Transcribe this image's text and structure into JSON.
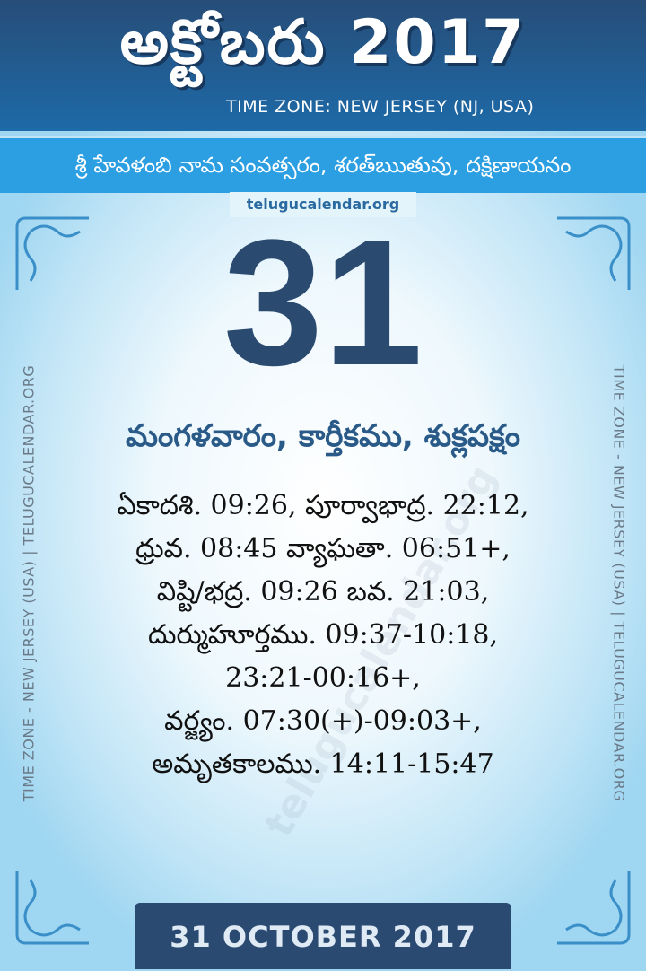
{
  "header": {
    "title": "అక్టోబరు 2017",
    "timezone": "TIME ZONE: NEW JERSEY (NJ, USA)"
  },
  "year_info": "శ్రీ హేవళంబి నామ సంవత్సరం, శరత్‌ఋతువు, దక్షిణాయనం",
  "site_label": "telugucalendar.org",
  "day_number": "31",
  "weekday_line": "మంగళవారం, కార్తీకము, శుక్లపక్షం",
  "details": [
    "ఏకాదశి. 09:26,  పూర్వాభాద్ర. 22:12,",
    "ధ్రువ. 08:45  వ్యాఘతా. 06:51+,",
    "విష్టి/భద్ర. 09:26  బవ. 21:03,",
    "దుర్ముహూర్తము. 09:37-10:18,",
    "23:21-00:16+,",
    "వర్జ్యం. 07:30(+)-09:03+,",
    "అమృతకాలము. 14:11-15:47"
  ],
  "side_text": "TIME ZONE - NEW JERSEY (USA) | TELUGUCALENDAR.ORG",
  "watermark": "telugucalendar.org",
  "footer_date": "31 OCTOBER 2017",
  "colors": {
    "header": "#274d78",
    "band": "#2c9ee2",
    "day": "#2a4a70",
    "footer": "#2a4a72"
  }
}
